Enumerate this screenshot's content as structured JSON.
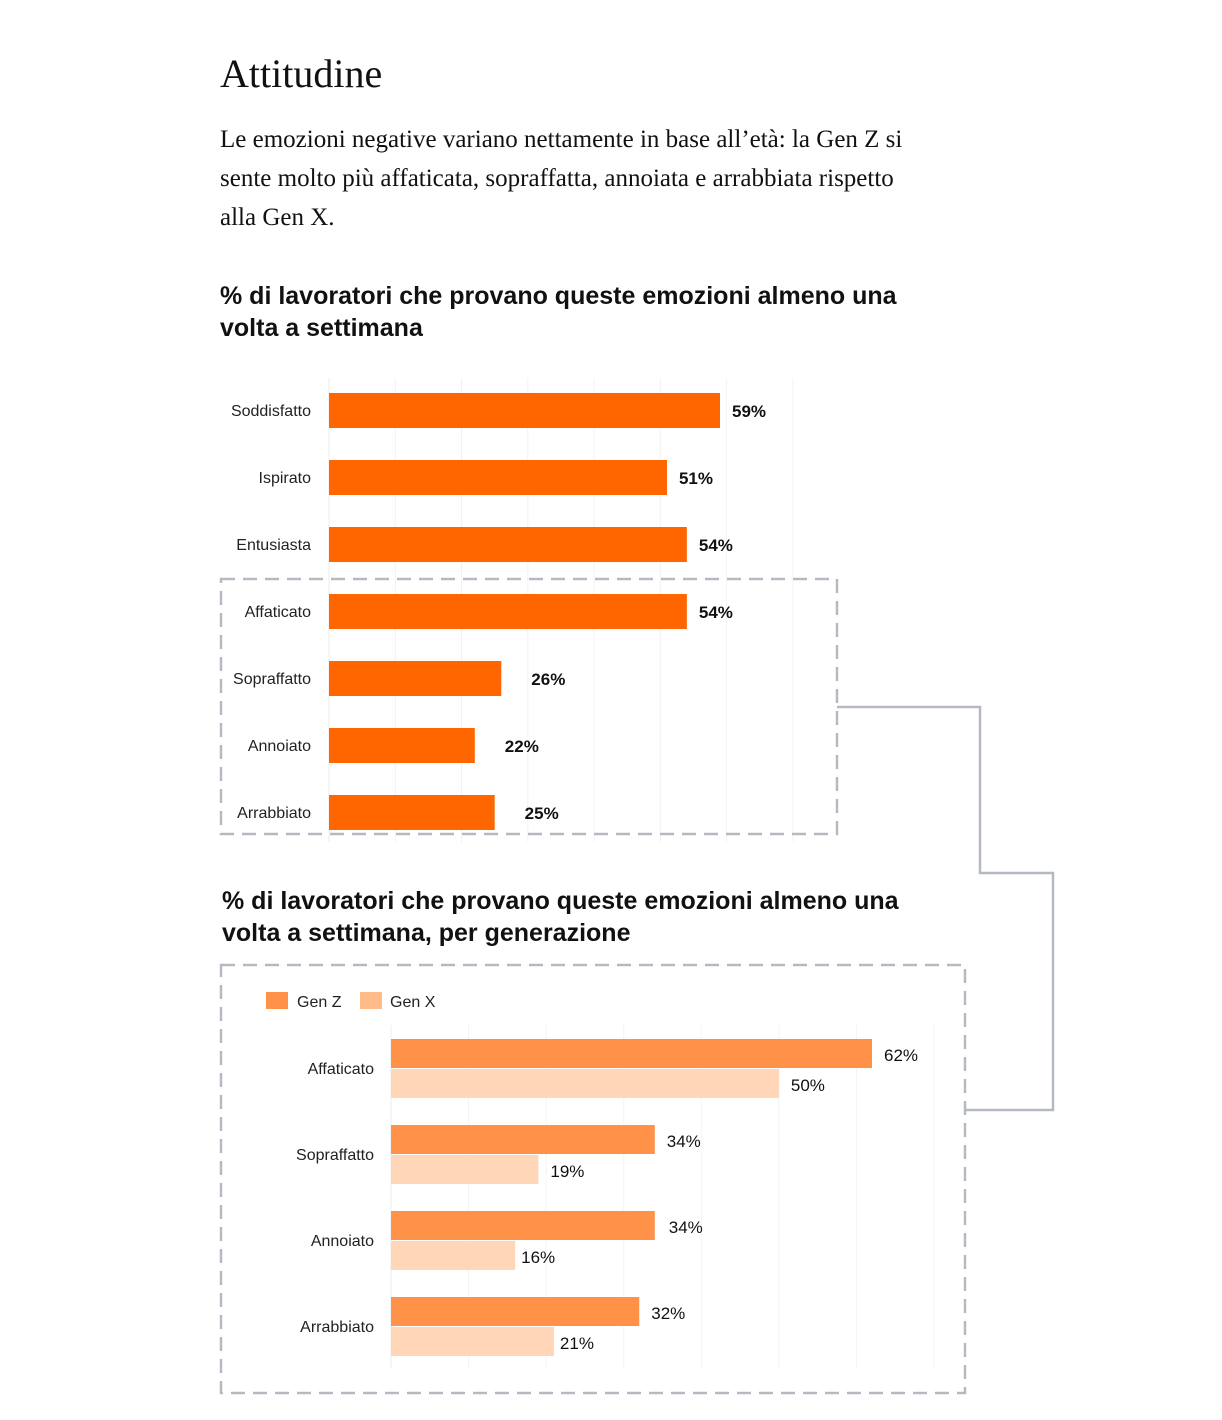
{
  "header": {
    "title": "Attitudine",
    "intro": "Le emozioni negative variano nettamente in base all’età: la Gen Z si sente molto più affaticata, sopraffatta, annoiata e arrabbiata rispetto alla Gen X."
  },
  "chart_data": [
    {
      "type": "bar",
      "orientation": "horizontal",
      "title": "% di lavoratori che provano queste emozioni almeno una volta a settimana",
      "categories": [
        "Soddisfatto",
        "Ispirato",
        "Entusiasta",
        "Affaticato",
        "Sopraffatto",
        "Annoiato",
        "Arrabbiato"
      ],
      "values": [
        59,
        51,
        54,
        54,
        26,
        22,
        25
      ],
      "value_labels": [
        "59%",
        "51%",
        "54%",
        "54%",
        "26%",
        "22%",
        "25%"
      ],
      "color": "#FF6600",
      "xlim": [
        0,
        70
      ],
      "grid": true,
      "highlighted_categories": [
        "Affaticato",
        "Sopraffatto",
        "Annoiato",
        "Arrabbiato"
      ]
    },
    {
      "type": "bar",
      "orientation": "horizontal",
      "title": "% di lavoratori che provano queste emozioni almeno una volta a settimana, per generazione",
      "categories": [
        "Affaticato",
        "Sopraffatto",
        "Annoiato",
        "Arrabbiato"
      ],
      "series": [
        {
          "name": "Gen Z",
          "values": [
            62,
            34,
            34,
            32
          ],
          "value_labels": [
            "62%",
            "34%",
            "34%",
            "32%"
          ],
          "color": "#FF9248"
        },
        {
          "name": "Gen X",
          "values": [
            50,
            19,
            16,
            21
          ],
          "value_labels": [
            "50%",
            "19%",
            "16%",
            "21%"
          ],
          "color": "#FFD7B8",
          "legend_color": "#FFBB88"
        }
      ],
      "xlim": [
        0,
        70
      ],
      "grid": true,
      "legend": "top-left"
    }
  ]
}
